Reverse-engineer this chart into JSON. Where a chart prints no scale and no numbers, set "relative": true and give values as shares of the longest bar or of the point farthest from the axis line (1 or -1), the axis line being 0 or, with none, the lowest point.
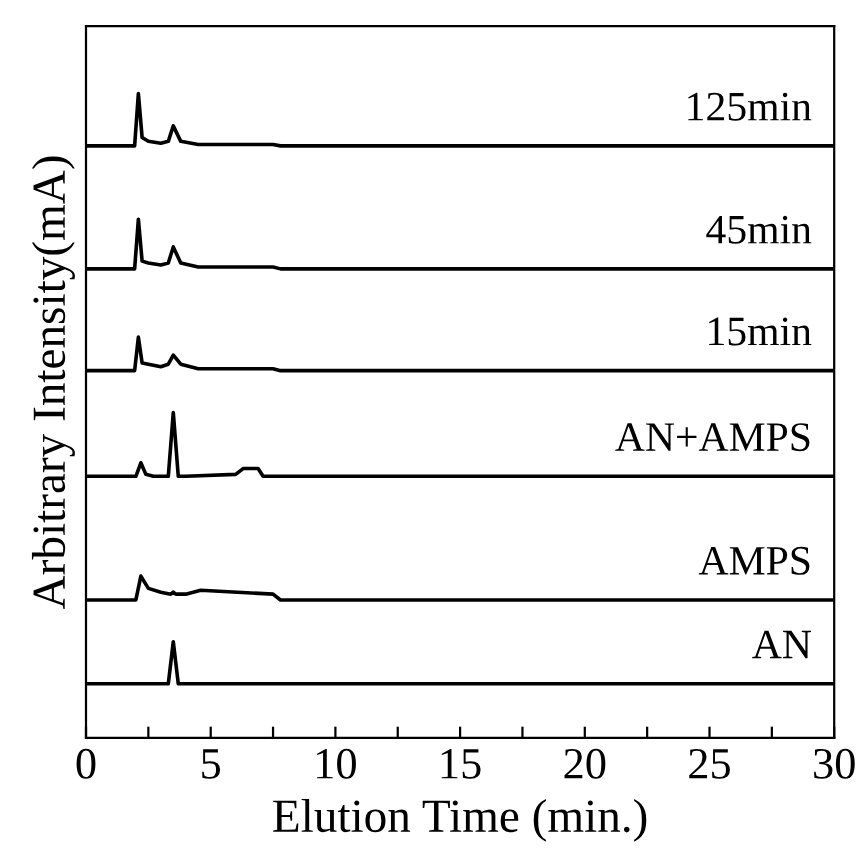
{
  "chart_data": {
    "type": "line",
    "relative": true,
    "xlabel": "Elution Time (min.)",
    "ylabel": "Arbitrary Intensity(mA)",
    "xlim": [
      0,
      30
    ],
    "xticks": [
      0,
      {
        "value": 2.5,
        "label": null
      },
      5,
      {
        "value": 7.5,
        "label": null
      },
      10,
      {
        "value": 12.5,
        "label": null
      },
      15,
      {
        "value": 17.5,
        "label": null
      },
      20,
      {
        "value": 22.5,
        "label": null
      },
      25,
      {
        "value": 27.5,
        "label": null
      },
      30
    ],
    "grid": false,
    "legend": false,
    "marker": "none",
    "line_style": "solid",
    "series": [
      {
        "name": "125min",
        "color": "#000000",
        "x": [
          0,
          1.95,
          2.1,
          2.25,
          2.5,
          3.0,
          3.3,
          3.5,
          3.8,
          4.5,
          7.5,
          7.8,
          30
        ],
        "values": [
          0.919,
          0.919,
          1.0,
          0.932,
          0.926,
          0.923,
          0.926,
          0.95,
          0.926,
          0.921,
          0.921,
          0.919,
          0.919
        ]
      },
      {
        "name": "45min",
        "color": "#000000",
        "x": [
          0,
          1.95,
          2.1,
          2.25,
          2.5,
          3.0,
          3.3,
          3.5,
          3.8,
          4.5,
          7.5,
          7.8,
          30
        ],
        "values": [
          0.728,
          0.728,
          0.805,
          0.74,
          0.737,
          0.734,
          0.737,
          0.762,
          0.737,
          0.731,
          0.731,
          0.728,
          0.728
        ]
      },
      {
        "name": "15min",
        "color": "#000000",
        "x": [
          0,
          1.95,
          2.1,
          2.25,
          2.5,
          3.0,
          3.3,
          3.5,
          3.8,
          4.5,
          7.5,
          7.8,
          30
        ],
        "values": [
          0.57,
          0.57,
          0.622,
          0.582,
          0.58,
          0.576,
          0.58,
          0.594,
          0.58,
          0.573,
          0.573,
          0.57,
          0.57
        ]
      },
      {
        "name": "AN+AMPS",
        "color": "#000000",
        "x": [
          0,
          2.0,
          2.2,
          2.4,
          2.7,
          3.3,
          3.5,
          3.7,
          4.0,
          6.0,
          6.3,
          6.9,
          7.1,
          30
        ],
        "values": [
          0.406,
          0.406,
          0.427,
          0.409,
          0.406,
          0.406,
          0.505,
          0.406,
          0.406,
          0.409,
          0.418,
          0.418,
          0.406,
          0.406
        ]
      },
      {
        "name": "AMPS",
        "color": "#000000",
        "x": [
          0,
          2.0,
          2.2,
          2.5,
          3.0,
          3.4,
          3.5,
          3.6,
          4.0,
          4.6,
          7.5,
          7.8,
          30
        ],
        "values": [
          0.214,
          0.214,
          0.251,
          0.232,
          0.226,
          0.223,
          0.226,
          0.223,
          0.223,
          0.229,
          0.223,
          0.214,
          0.214
        ]
      },
      {
        "name": "AN",
        "color": "#000000",
        "x": [
          0,
          3.3,
          3.5,
          3.7,
          30
        ],
        "values": [
          0.084,
          0.084,
          0.149,
          0.084,
          0.084
        ]
      }
    ]
  }
}
